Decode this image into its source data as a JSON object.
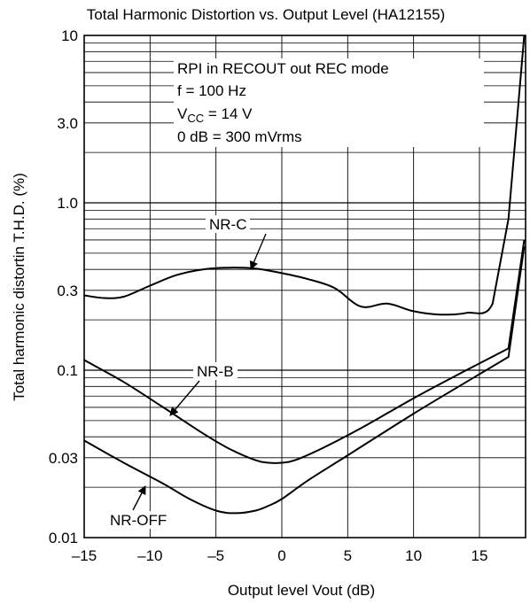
{
  "chart_data": {
    "type": "line",
    "title": "Total Harmonic Distortion vs. Output Level (HA12155)",
    "xlabel": "Output level Vout (dB)",
    "ylabel": "Total harmonic distortin T.H.D. (%)",
    "xlim": [
      -15,
      18.5
    ],
    "ylim": [
      0.01,
      10
    ],
    "yscale": "log",
    "grid": true,
    "x_ticks": [
      {
        "v": -15,
        "label": "–15"
      },
      {
        "v": -10,
        "label": "–10"
      },
      {
        "v": -5,
        "label": "–5"
      },
      {
        "v": 0,
        "label": "0"
      },
      {
        "v": 5,
        "label": "5"
      },
      {
        "v": 10,
        "label": "10"
      },
      {
        "v": 15,
        "label": "15"
      }
    ],
    "y_ticks": [
      {
        "v": 10,
        "label": "10"
      },
      {
        "v": 3,
        "label": "3.0"
      },
      {
        "v": 1,
        "label": "1.0"
      },
      {
        "v": 0.3,
        "label": "0.3"
      },
      {
        "v": 0.1,
        "label": "0.1"
      },
      {
        "v": 0.03,
        "label": "0.03"
      },
      {
        "v": 0.01,
        "label": "0.01"
      }
    ],
    "conditions": {
      "line1": "RPI in RECOUT out REC mode",
      "line2": "f = 100 Hz",
      "vcc_main": "V",
      "vcc_sub": "CC",
      "vcc_rest": " = 14 V",
      "line4": "0 dB = 300 mVrms"
    },
    "series": [
      {
        "name": "NR-C",
        "x": [
          -15,
          -13.5,
          -12,
          -10,
          -8,
          -6,
          -4,
          -2,
          0,
          2,
          4,
          6,
          8,
          10,
          12,
          14,
          16,
          17.2,
          18.4
        ],
        "y": [
          0.28,
          0.27,
          0.275,
          0.32,
          0.37,
          0.4,
          0.41,
          0.405,
          0.38,
          0.35,
          0.31,
          0.24,
          0.25,
          0.225,
          0.215,
          0.22,
          0.25,
          0.8,
          10
        ]
      },
      {
        "name": "NR-B",
        "x": [
          -15,
          -12,
          -9,
          -6,
          -4,
          -2,
          -1,
          0,
          1,
          3,
          6,
          10,
          14,
          17.2,
          18.4
        ],
        "y": [
          0.115,
          0.085,
          0.06,
          0.042,
          0.034,
          0.029,
          0.028,
          0.028,
          0.029,
          0.034,
          0.045,
          0.068,
          0.1,
          0.135,
          0.6
        ]
      },
      {
        "name": "NR-OFF",
        "x": [
          -15,
          -12,
          -9,
          -7,
          -5,
          -3.5,
          -2,
          -1,
          0,
          2,
          5,
          10,
          14,
          17.2,
          18.4
        ],
        "y": [
          0.038,
          0.028,
          0.021,
          0.017,
          0.0145,
          0.014,
          0.0145,
          0.0155,
          0.017,
          0.022,
          0.031,
          0.055,
          0.085,
          0.12,
          0.55
        ]
      }
    ]
  }
}
